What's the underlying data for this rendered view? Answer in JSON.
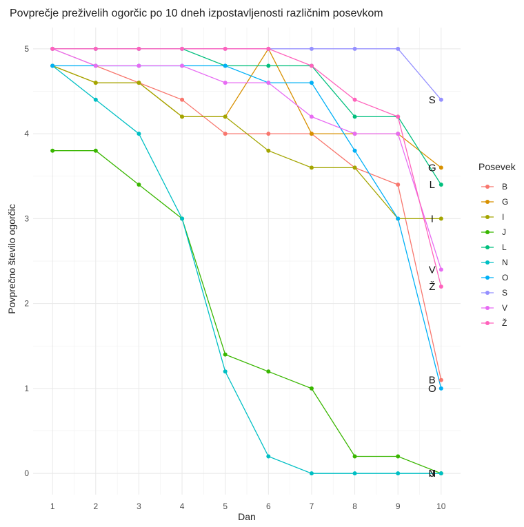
{
  "chart_data": {
    "type": "line",
    "title": "Povprečje preživelih ogorčic po 10 dneh izpostavljenosti različnim posevkom",
    "xlabel": "Dan",
    "ylabel": "Povprečno število ogorčic",
    "x": [
      1,
      2,
      3,
      4,
      5,
      6,
      7,
      8,
      9,
      10
    ],
    "xlim": [
      0.55,
      10.45
    ],
    "ylim": [
      -0.25,
      5.25
    ],
    "y_ticks": [
      0,
      1,
      2,
      3,
      4,
      5
    ],
    "grid": true,
    "legend": {
      "title": "Posevek",
      "placement": "right"
    },
    "series": [
      {
        "name": "B",
        "color": "#F8766D",
        "values": [
          5,
          4.8,
          4.6,
          4.4,
          4,
          4,
          4,
          3.6,
          3.4,
          1.1
        ],
        "end_label": "B"
      },
      {
        "name": "G",
        "color": "#D89000",
        "values": [
          4.8,
          4.6,
          4.6,
          4.2,
          4.2,
          5,
          4,
          4,
          4,
          3.6
        ],
        "end_label": "G"
      },
      {
        "name": "I",
        "color": "#A3A500",
        "values": [
          4.8,
          4.6,
          4.6,
          4.2,
          4.2,
          3.8,
          3.6,
          3.6,
          3,
          3
        ],
        "end_label": "I"
      },
      {
        "name": "J",
        "color": "#39B600",
        "values": [
          3.8,
          3.8,
          3.4,
          3,
          1.4,
          1.2,
          1,
          0.2,
          0.2,
          0
        ],
        "end_label": "J"
      },
      {
        "name": "L",
        "color": "#00BF7D",
        "values": [
          5,
          5,
          5,
          5,
          4.8,
          4.8,
          4.8,
          4.2,
          4.2,
          3.4
        ],
        "end_label": "L"
      },
      {
        "name": "N",
        "color": "#00BFC4",
        "values": [
          4.8,
          4.4,
          4,
          3,
          1.2,
          0.2,
          0,
          0,
          0,
          0
        ],
        "end_label": "N"
      },
      {
        "name": "O",
        "color": "#00B0F6",
        "values": [
          4.8,
          4.8,
          4.8,
          4.8,
          4.8,
          4.6,
          4.6,
          3.8,
          3,
          1
        ],
        "end_label": "O"
      },
      {
        "name": "S",
        "color": "#9590FF",
        "values": [
          5,
          5,
          5,
          5,
          5,
          5,
          5,
          5,
          5,
          4.4
        ],
        "end_label": "S"
      },
      {
        "name": "V",
        "color": "#E76BF3",
        "values": [
          5,
          4.8,
          4.8,
          4.8,
          4.6,
          4.6,
          4.2,
          4,
          4,
          2.4
        ],
        "end_label": "V"
      },
      {
        "name": "Ž",
        "color": "#FF62BC",
        "values": [
          5,
          5,
          5,
          5,
          5,
          5,
          4.8,
          4.4,
          4.2,
          2.2
        ],
        "end_label": "Ž"
      }
    ]
  }
}
